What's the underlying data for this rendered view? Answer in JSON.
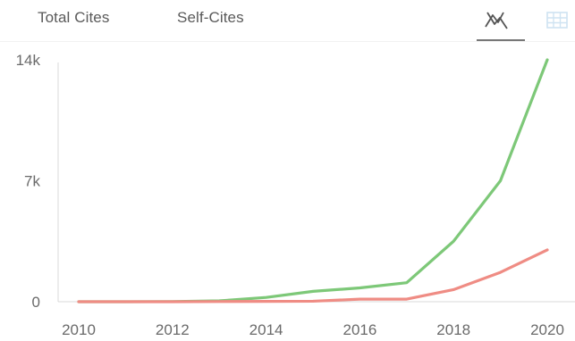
{
  "legend": {
    "total_label": "Total Cites",
    "self_label": "Self-Cites"
  },
  "view_toggle": {
    "line_icon": "line-chart-icon",
    "table_icon": "table-grid-icon",
    "active": "line"
  },
  "colors": {
    "total": "#7dc878",
    "self": "#ef8c84",
    "axis": "#d9d9d9",
    "text": "#6a6a6a",
    "table_icon": "#cfe3f2"
  },
  "chart_data": {
    "type": "line",
    "x": [
      2010,
      2011,
      2012,
      2013,
      2014,
      2015,
      2016,
      2017,
      2018,
      2019,
      2020
    ],
    "series": [
      {
        "name": "Total Cites",
        "values": [
          0,
          0,
          10,
          50,
          250,
          600,
          800,
          1100,
          3500,
          7000,
          14000
        ]
      },
      {
        "name": "Self-Cites",
        "values": [
          0,
          0,
          0,
          10,
          20,
          30,
          150,
          150,
          700,
          1700,
          3000
        ]
      }
    ],
    "xticks": [
      "2010",
      "2012",
      "2014",
      "2016",
      "2018",
      "2020"
    ],
    "yticks": [
      "0",
      "7k",
      "14k"
    ],
    "xlim": [
      2010,
      2020
    ],
    "ylim": [
      0,
      14000
    ],
    "grid": false,
    "legend_position": "top-left"
  }
}
